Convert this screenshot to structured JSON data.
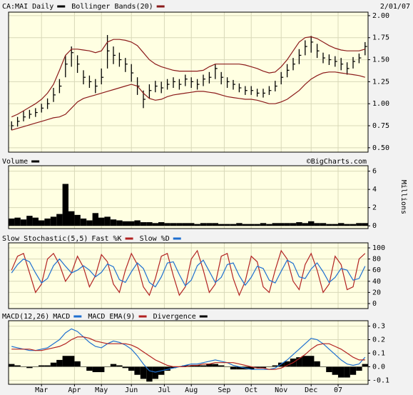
{
  "chart_data": [
    {
      "type": "ohlc",
      "date_label": "2/01/07",
      "ylim": [
        0.45,
        2.04
      ],
      "yticks": [
        {
          "value": 0.5,
          "label": "0.50"
        },
        0.75,
        {
          "value": 1,
          "label": "1.00"
        },
        1.25,
        {
          "value": 1.5,
          "label": "1.50"
        },
        1.75,
        {
          "value": 2,
          "label": "2.00"
        }
      ],
      "grid": true,
      "series": [
        {
          "name": "CA:MAI Daily",
          "color": "#000000",
          "high": [
            0.8,
            0.85,
            0.92,
            0.93,
            0.95,
            1.0,
            1.06,
            1.18,
            1.28,
            1.55,
            1.65,
            1.55,
            1.38,
            1.32,
            1.28,
            1.4,
            1.78,
            1.65,
            1.58,
            1.52,
            1.45,
            1.3,
            1.15,
            1.22,
            1.26,
            1.25,
            1.28,
            1.3,
            1.28,
            1.33,
            1.3,
            1.28,
            1.33,
            1.36,
            1.45,
            1.36,
            1.3,
            1.27,
            1.23,
            1.2,
            1.2,
            1.17,
            1.17,
            1.2,
            1.26,
            1.36,
            1.45,
            1.52,
            1.62,
            1.72,
            1.77,
            1.68,
            1.58,
            1.56,
            1.54,
            1.52,
            1.47,
            1.53,
            1.57,
            1.7
          ],
          "low": [
            0.7,
            0.74,
            0.8,
            0.83,
            0.85,
            0.9,
            0.94,
            1.02,
            1.12,
            1.3,
            1.42,
            1.35,
            1.22,
            1.18,
            1.12,
            1.22,
            1.4,
            1.45,
            1.42,
            1.36,
            1.25,
            1.1,
            0.95,
            1.06,
            1.13,
            1.12,
            1.16,
            1.18,
            1.16,
            1.2,
            1.18,
            1.16,
            1.2,
            1.23,
            1.28,
            1.22,
            1.18,
            1.16,
            1.13,
            1.1,
            1.1,
            1.08,
            1.07,
            1.1,
            1.14,
            1.22,
            1.3,
            1.38,
            1.45,
            1.55,
            1.58,
            1.52,
            1.46,
            1.44,
            1.42,
            1.38,
            1.33,
            1.4,
            1.46,
            1.55
          ],
          "close": [
            0.75,
            0.8,
            0.85,
            0.88,
            0.9,
            0.95,
            1.0,
            1.1,
            1.2,
            1.45,
            1.58,
            1.45,
            1.3,
            1.25,
            1.2,
            1.3,
            1.6,
            1.55,
            1.5,
            1.45,
            1.35,
            1.2,
            1.05,
            1.15,
            1.2,
            1.18,
            1.22,
            1.25,
            1.22,
            1.28,
            1.25,
            1.22,
            1.28,
            1.3,
            1.4,
            1.3,
            1.25,
            1.22,
            1.18,
            1.15,
            1.15,
            1.12,
            1.12,
            1.15,
            1.2,
            1.3,
            1.38,
            1.45,
            1.55,
            1.65,
            1.7,
            1.6,
            1.52,
            1.5,
            1.48,
            1.45,
            1.4,
            1.48,
            1.52,
            1.65
          ]
        },
        {
          "name": "Bollinger Bands(20)",
          "color": "#8b1a1a",
          "upper": [
            0.85,
            0.88,
            0.92,
            0.96,
            1.0,
            1.05,
            1.12,
            1.22,
            1.38,
            1.55,
            1.62,
            1.62,
            1.61,
            1.6,
            1.58,
            1.6,
            1.7,
            1.73,
            1.73,
            1.72,
            1.7,
            1.66,
            1.58,
            1.5,
            1.45,
            1.42,
            1.4,
            1.38,
            1.37,
            1.37,
            1.37,
            1.37,
            1.38,
            1.42,
            1.45,
            1.45,
            1.45,
            1.45,
            1.45,
            1.44,
            1.42,
            1.4,
            1.37,
            1.35,
            1.36,
            1.42,
            1.5,
            1.6,
            1.7,
            1.75,
            1.76,
            1.74,
            1.7,
            1.66,
            1.63,
            1.61,
            1.6,
            1.6,
            1.6,
            1.62
          ],
          "lower": [
            0.7,
            0.72,
            0.74,
            0.76,
            0.78,
            0.8,
            0.82,
            0.84,
            0.85,
            0.88,
            0.95,
            1.02,
            1.06,
            1.08,
            1.1,
            1.12,
            1.14,
            1.16,
            1.18,
            1.2,
            1.22,
            1.2,
            1.12,
            1.06,
            1.04,
            1.05,
            1.08,
            1.1,
            1.11,
            1.12,
            1.13,
            1.14,
            1.14,
            1.13,
            1.12,
            1.1,
            1.08,
            1.07,
            1.06,
            1.05,
            1.05,
            1.04,
            1.02,
            1.0,
            1.0,
            1.02,
            1.05,
            1.1,
            1.15,
            1.22,
            1.28,
            1.32,
            1.35,
            1.36,
            1.36,
            1.35,
            1.34,
            1.33,
            1.32,
            1.3
          ]
        }
      ]
    },
    {
      "type": "bar",
      "credit": "©BigCharts.com",
      "y_label": "Millions",
      "ylim": [
        -0.3,
        6.6
      ],
      "yticks": [
        0,
        2,
        4,
        6
      ],
      "grid": true,
      "series": [
        {
          "name": "Volume",
          "color": "#000000",
          "values": [
            0.8,
            0.9,
            0.7,
            1.1,
            0.9,
            0.6,
            0.8,
            1.0,
            1.3,
            4.6,
            1.6,
            1.2,
            0.8,
            0.6,
            1.4,
            0.9,
            1.0,
            0.7,
            0.6,
            0.5,
            0.5,
            0.6,
            0.4,
            0.4,
            0.3,
            0.4,
            0.3,
            0.3,
            0.3,
            0.3,
            0.3,
            0.2,
            0.3,
            0.3,
            0.3,
            0.2,
            0.2,
            0.2,
            0.3,
            0.2,
            0.2,
            0.2,
            0.3,
            0.2,
            0.3,
            0.3,
            0.3,
            0.3,
            0.4,
            0.3,
            0.5,
            0.3,
            0.3,
            0.2,
            0.2,
            0.3,
            0.2,
            0.2,
            0.3,
            0.3
          ]
        }
      ]
    },
    {
      "type": "line",
      "title": "Slow Stochastic(5,5)",
      "ylim": [
        -9,
        109
      ],
      "yticks": [
        0,
        20,
        40,
        60,
        80,
        100
      ],
      "grid": true,
      "series": [
        {
          "name": "Fast %K",
          "color": "#b22222",
          "values": [
            60,
            85,
            90,
            55,
            20,
            35,
            80,
            90,
            70,
            40,
            55,
            85,
            65,
            30,
            50,
            88,
            75,
            35,
            20,
            60,
            90,
            70,
            30,
            15,
            45,
            85,
            90,
            50,
            15,
            30,
            80,
            95,
            60,
            20,
            35,
            85,
            90,
            45,
            15,
            40,
            85,
            75,
            30,
            20,
            60,
            95,
            80,
            40,
            25,
            70,
            90,
            60,
            20,
            35,
            85,
            70,
            25,
            30,
            80,
            90
          ]
        },
        {
          "name": "Slow %D",
          "color": "#1e6fd0",
          "values": [
            55,
            70,
            80,
            75,
            55,
            37,
            45,
            68,
            80,
            67,
            55,
            60,
            68,
            60,
            48,
            56,
            71,
            66,
            43,
            38,
            57,
            73,
            63,
            38,
            30,
            48,
            73,
            75,
            52,
            32,
            42,
            68,
            78,
            58,
            38,
            47,
            70,
            73,
            50,
            33,
            47,
            67,
            63,
            42,
            37,
            58,
            78,
            72,
            48,
            45,
            62,
            73,
            57,
            38,
            47,
            63,
            60,
            42,
            45,
            67
          ]
        }
      ]
    },
    {
      "type": "line",
      "title": "MACD(12,26)",
      "ylim": [
        -0.13,
        0.34
      ],
      "yticks": [
        -0.1,
        {
          "value": 0,
          "label": "0.0"
        },
        0.1,
        0.2,
        0.3
      ],
      "grid": true,
      "xlim": [
        -0.5,
        59.5
      ],
      "xticks": [
        {
          "value": 5,
          "label": "Mar"
        },
        {
          "value": 10.5,
          "label": "Apr"
        },
        {
          "value": 15,
          "label": "May"
        },
        {
          "value": 20,
          "label": "Jun"
        },
        {
          "value": 25.5,
          "label": "Jul"
        },
        {
          "value": 30,
          "label": "Aug"
        },
        {
          "value": 35.5,
          "label": "Sep"
        },
        {
          "value": 40,
          "label": "Oct"
        },
        {
          "value": 45,
          "label": "Nov"
        },
        {
          "value": 50,
          "label": "Dec"
        },
        {
          "value": 54.5,
          "label": "07"
        }
      ],
      "series": [
        {
          "name": "MACD",
          "color": "#1e6fd0",
          "values": [
            0.15,
            0.14,
            0.13,
            0.12,
            0.12,
            0.13,
            0.14,
            0.17,
            0.2,
            0.25,
            0.28,
            0.26,
            0.22,
            0.18,
            0.15,
            0.14,
            0.17,
            0.19,
            0.18,
            0.16,
            0.13,
            0.08,
            0.02,
            -0.03,
            -0.04,
            -0.03,
            -0.02,
            -0.01,
            0.0,
            0.01,
            0.02,
            0.02,
            0.03,
            0.04,
            0.05,
            0.04,
            0.03,
            0.01,
            0.0,
            -0.01,
            -0.02,
            -0.02,
            -0.02,
            -0.02,
            -0.01,
            0.02,
            0.05,
            0.09,
            0.13,
            0.17,
            0.21,
            0.2,
            0.17,
            0.13,
            0.09,
            0.05,
            0.02,
            0.01,
            0.02,
            0.07
          ]
        },
        {
          "name": "MACD EMA(9)",
          "color": "#b22222",
          "values": [
            0.13,
            0.13,
            0.13,
            0.13,
            0.12,
            0.12,
            0.13,
            0.14,
            0.15,
            0.17,
            0.2,
            0.22,
            0.22,
            0.21,
            0.19,
            0.18,
            0.17,
            0.17,
            0.17,
            0.17,
            0.16,
            0.14,
            0.11,
            0.08,
            0.05,
            0.03,
            0.01,
            0.0,
            0.0,
            0.0,
            0.01,
            0.01,
            0.02,
            0.02,
            0.03,
            0.03,
            0.03,
            0.03,
            0.02,
            0.01,
            0.0,
            -0.01,
            -0.01,
            -0.02,
            -0.02,
            -0.01,
            0.01,
            0.03,
            0.06,
            0.09,
            0.13,
            0.16,
            0.17,
            0.17,
            0.15,
            0.13,
            0.1,
            0.07,
            0.05,
            0.05
          ]
        },
        {
          "name": "Divergence",
          "color": "#000000",
          "style": "histogram",
          "values": [
            0.02,
            0.01,
            0,
            -0.01,
            0,
            0.01,
            0.01,
            0.03,
            0.05,
            0.08,
            0.08,
            0.04,
            0,
            -0.03,
            -0.04,
            -0.04,
            0,
            0.02,
            0.01,
            -0.01,
            -0.03,
            -0.06,
            -0.09,
            -0.11,
            -0.09,
            -0.06,
            -0.03,
            -0.01,
            0,
            0.01,
            0.01,
            0.01,
            0.01,
            0.02,
            0.02,
            0.01,
            0,
            -0.02,
            -0.02,
            -0.02,
            -0.02,
            -0.01,
            -0.01,
            0,
            0.01,
            0.03,
            0.04,
            0.06,
            0.07,
            0.08,
            0.08,
            0.04,
            0,
            -0.04,
            -0.06,
            -0.08,
            -0.08,
            -0.06,
            -0.03,
            0.02
          ]
        }
      ]
    }
  ]
}
